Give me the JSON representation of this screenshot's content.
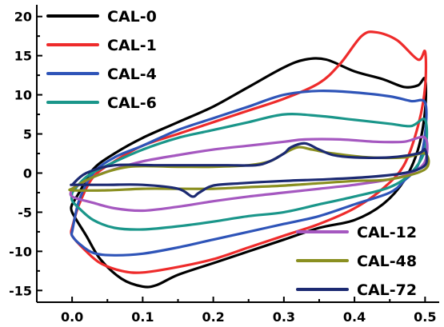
{
  "chart_data": {
    "type": "line",
    "title": "",
    "xlabel": "",
    "ylabel": "",
    "xlim": [
      -0.05,
      0.52
    ],
    "ylim": [
      -16.5,
      21.5
    ],
    "xticks": [
      0.0,
      0.1,
      0.2,
      0.3,
      0.4,
      0.5
    ],
    "xtick_labels": [
      "0.0",
      "0.1",
      "0.2",
      "0.3",
      "0.4",
      "0.5"
    ],
    "yticks": [
      -15,
      -10,
      -5,
      0,
      5,
      10,
      15,
      20
    ],
    "ytick_labels": [
      "-15",
      "-10",
      "-5",
      "0",
      "5",
      "10",
      "15",
      "20"
    ],
    "grid": false,
    "legend": [
      {
        "placement": "top-left",
        "entries": [
          "CAL-0",
          "CAL-1",
          "CAL-4",
          "CAL-6"
        ]
      },
      {
        "placement": "bottom-right",
        "entries": [
          "CAL-12",
          "CAL-48",
          "CAL-72"
        ]
      }
    ],
    "series": [
      {
        "name": "CAL-0",
        "color": "#000000",
        "x": [
          0.0,
          0.01,
          0.03,
          0.06,
          0.1,
          0.15,
          0.2,
          0.25,
          0.3,
          0.33,
          0.36,
          0.4,
          0.44,
          0.47,
          0.49,
          0.5,
          0.5,
          0.49,
          0.47,
          0.44,
          0.4,
          0.35,
          0.3,
          0.25,
          0.2,
          0.15,
          0.12,
          0.1,
          0.07,
          0.04,
          0.02,
          0.0,
          0.0
        ],
        "y": [
          -4.0,
          -2.5,
          0.5,
          2.5,
          4.5,
          6.5,
          8.5,
          11.0,
          13.5,
          14.5,
          14.5,
          13.0,
          12.0,
          11.0,
          11.2,
          12.0,
          8.0,
          3.0,
          -1.0,
          -4.0,
          -6.0,
          -7.0,
          -8.5,
          -10.0,
          -11.5,
          -13.0,
          -14.3,
          -14.5,
          -13.5,
          -11.0,
          -8.0,
          -5.0,
          -4.0
        ]
      },
      {
        "name": "CAL-1",
        "color": "#ee2b2b",
        "x": [
          0.0,
          0.01,
          0.03,
          0.06,
          0.1,
          0.15,
          0.2,
          0.25,
          0.3,
          0.35,
          0.38,
          0.41,
          0.43,
          0.46,
          0.49,
          0.5,
          0.5,
          0.49,
          0.47,
          0.44,
          0.4,
          0.35,
          0.3,
          0.25,
          0.2,
          0.15,
          0.1,
          0.07,
          0.04,
          0.02,
          0.0,
          0.0
        ],
        "y": [
          -7.0,
          -4.0,
          -0.5,
          1.5,
          3.5,
          5.0,
          6.5,
          8.0,
          9.5,
          11.5,
          14.0,
          17.5,
          18.0,
          17.0,
          14.5,
          15.5,
          11.0,
          6.0,
          1.0,
          -2.0,
          -4.5,
          -6.5,
          -8.0,
          -9.5,
          -11.0,
          -12.0,
          -12.7,
          -12.5,
          -11.5,
          -10.0,
          -8.0,
          -7.0
        ]
      },
      {
        "name": "CAL-4",
        "color": "#2e54b8",
        "x": [
          0.0,
          0.01,
          0.03,
          0.06,
          0.1,
          0.15,
          0.2,
          0.25,
          0.3,
          0.35,
          0.4,
          0.45,
          0.48,
          0.5,
          0.5,
          0.49,
          0.47,
          0.45,
          0.4,
          0.35,
          0.3,
          0.25,
          0.2,
          0.15,
          0.1,
          0.06,
          0.03,
          0.01,
          0.0,
          0.0
        ],
        "y": [
          -7.5,
          -3.5,
          0.0,
          2.0,
          3.5,
          5.5,
          7.0,
          8.5,
          10.0,
          10.5,
          10.3,
          9.8,
          9.2,
          9.0,
          5.0,
          1.0,
          -1.0,
          -2.5,
          -4.0,
          -5.5,
          -6.5,
          -7.5,
          -8.5,
          -9.5,
          -10.3,
          -10.5,
          -10.2,
          -9.0,
          -8.0,
          -7.5
        ]
      },
      {
        "name": "CAL-6",
        "color": "#1a968a",
        "x": [
          0.0,
          0.02,
          0.05,
          0.1,
          0.15,
          0.2,
          0.25,
          0.3,
          0.35,
          0.4,
          0.45,
          0.48,
          0.5,
          0.5,
          0.48,
          0.45,
          0.4,
          0.35,
          0.3,
          0.25,
          0.2,
          0.15,
          0.1,
          0.06,
          0.03,
          0.01,
          0.0,
          0.0
        ],
        "y": [
          -2.5,
          -0.5,
          1.0,
          3.0,
          4.5,
          5.5,
          6.5,
          7.5,
          7.3,
          6.8,
          6.3,
          6.0,
          6.8,
          3.0,
          0.0,
          -1.8,
          -3.0,
          -4.0,
          -5.0,
          -5.5,
          -6.2,
          -6.8,
          -7.2,
          -7.0,
          -6.0,
          -4.5,
          -3.5,
          -2.5
        ]
      },
      {
        "name": "CAL-12",
        "color": "#a558c0",
        "x": [
          0.0,
          0.03,
          0.06,
          0.1,
          0.15,
          0.2,
          0.25,
          0.3,
          0.33,
          0.38,
          0.43,
          0.47,
          0.5,
          0.5,
          0.48,
          0.45,
          0.4,
          0.35,
          0.3,
          0.25,
          0.2,
          0.15,
          0.1,
          0.06,
          0.03,
          0.0,
          0.0
        ],
        "y": [
          -2.0,
          -0.5,
          0.5,
          1.5,
          2.3,
          3.0,
          3.5,
          4.0,
          4.3,
          4.3,
          4.0,
          4.0,
          4.5,
          1.5,
          0.0,
          -0.8,
          -1.5,
          -2.0,
          -2.5,
          -3.0,
          -3.6,
          -4.3,
          -4.8,
          -4.5,
          -3.8,
          -3.0,
          -2.0
        ]
      },
      {
        "name": "CAL-48",
        "color": "#8a8f20",
        "x": [
          0.0,
          0.03,
          0.08,
          0.15,
          0.2,
          0.25,
          0.28,
          0.3,
          0.32,
          0.34,
          0.37,
          0.42,
          0.47,
          0.5,
          0.5,
          0.45,
          0.4,
          0.35,
          0.3,
          0.25,
          0.2,
          0.15,
          0.1,
          0.05,
          0.0,
          0.0
        ],
        "y": [
          -2.0,
          -0.5,
          0.8,
          0.8,
          0.8,
          1.0,
          1.5,
          2.5,
          3.3,
          3.0,
          2.5,
          2.0,
          2.0,
          2.5,
          0.5,
          -0.8,
          -1.0,
          -1.3,
          -1.6,
          -1.8,
          -2.0,
          -2.0,
          -2.0,
          -2.2,
          -2.2,
          -2.0
        ]
      },
      {
        "name": "CAL-72",
        "color": "#1c2a72",
        "x": [
          0.0,
          0.02,
          0.06,
          0.12,
          0.18,
          0.22,
          0.26,
          0.28,
          0.3,
          0.31,
          0.33,
          0.35,
          0.37,
          0.4,
          0.45,
          0.49,
          0.5,
          0.5,
          0.47,
          0.42,
          0.36,
          0.3,
          0.24,
          0.2,
          0.18,
          0.17,
          0.15,
          0.1,
          0.05,
          0.02,
          0.0,
          0.0
        ],
        "y": [
          -1.5,
          0.0,
          1.0,
          1.0,
          1.0,
          1.0,
          1.0,
          1.5,
          2.5,
          3.3,
          3.8,
          3.0,
          2.3,
          2.0,
          2.0,
          2.5,
          3.0,
          1.0,
          0.0,
          -0.5,
          -0.8,
          -1.0,
          -1.3,
          -1.6,
          -2.5,
          -3.0,
          -2.0,
          -1.5,
          -1.5,
          -1.5,
          -1.5,
          -1.5
        ]
      }
    ]
  }
}
